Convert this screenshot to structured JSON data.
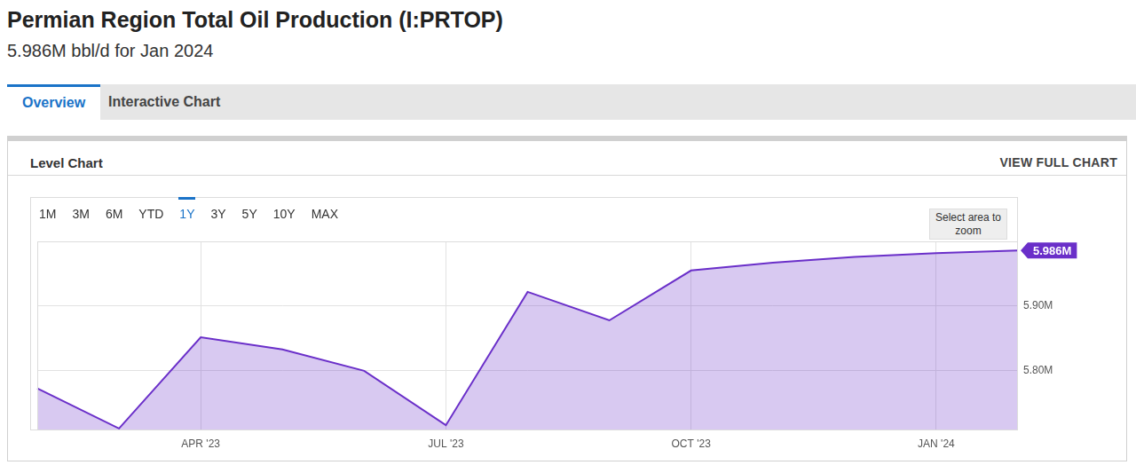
{
  "page": {
    "title": "Permian Region Total Oil Production (I:PRTOP)",
    "subtitle": "5.986M bbl/d for Jan 2024",
    "tabs": [
      "Overview",
      "Interactive Chart"
    ],
    "active_tab": "Overview",
    "panel_title": "Level Chart",
    "panel_link": "VIEW FULL CHART",
    "range_buttons": [
      "1M",
      "3M",
      "6M",
      "YTD",
      "1Y",
      "3Y",
      "5Y",
      "10Y",
      "MAX"
    ],
    "active_range": "1Y",
    "zoom_hint": "Select area to zoom"
  },
  "chart_data": {
    "type": "area",
    "categories": [
      null,
      null,
      "APR '23",
      null,
      null,
      "JUL '23",
      null,
      null,
      "OCT '23",
      null,
      null,
      "JAN '24",
      null
    ],
    "values": [
      5.773,
      5.711,
      5.852,
      5.833,
      5.8,
      5.716,
      5.922,
      5.878,
      5.955,
      5.967,
      5.976,
      5.982,
      5.986
    ],
    "value_labels": [
      null,
      null,
      null,
      null,
      null,
      null,
      null,
      null,
      null,
      null,
      null,
      null,
      "5.986M"
    ],
    "color": "#6a2fc9",
    "ylim": [
      5.708,
      6.0
    ],
    "yticks": [
      {
        "value": 5.8,
        "label": "5.80M"
      },
      {
        "value": 5.9,
        "label": "5.90M"
      }
    ],
    "grid": true
  }
}
